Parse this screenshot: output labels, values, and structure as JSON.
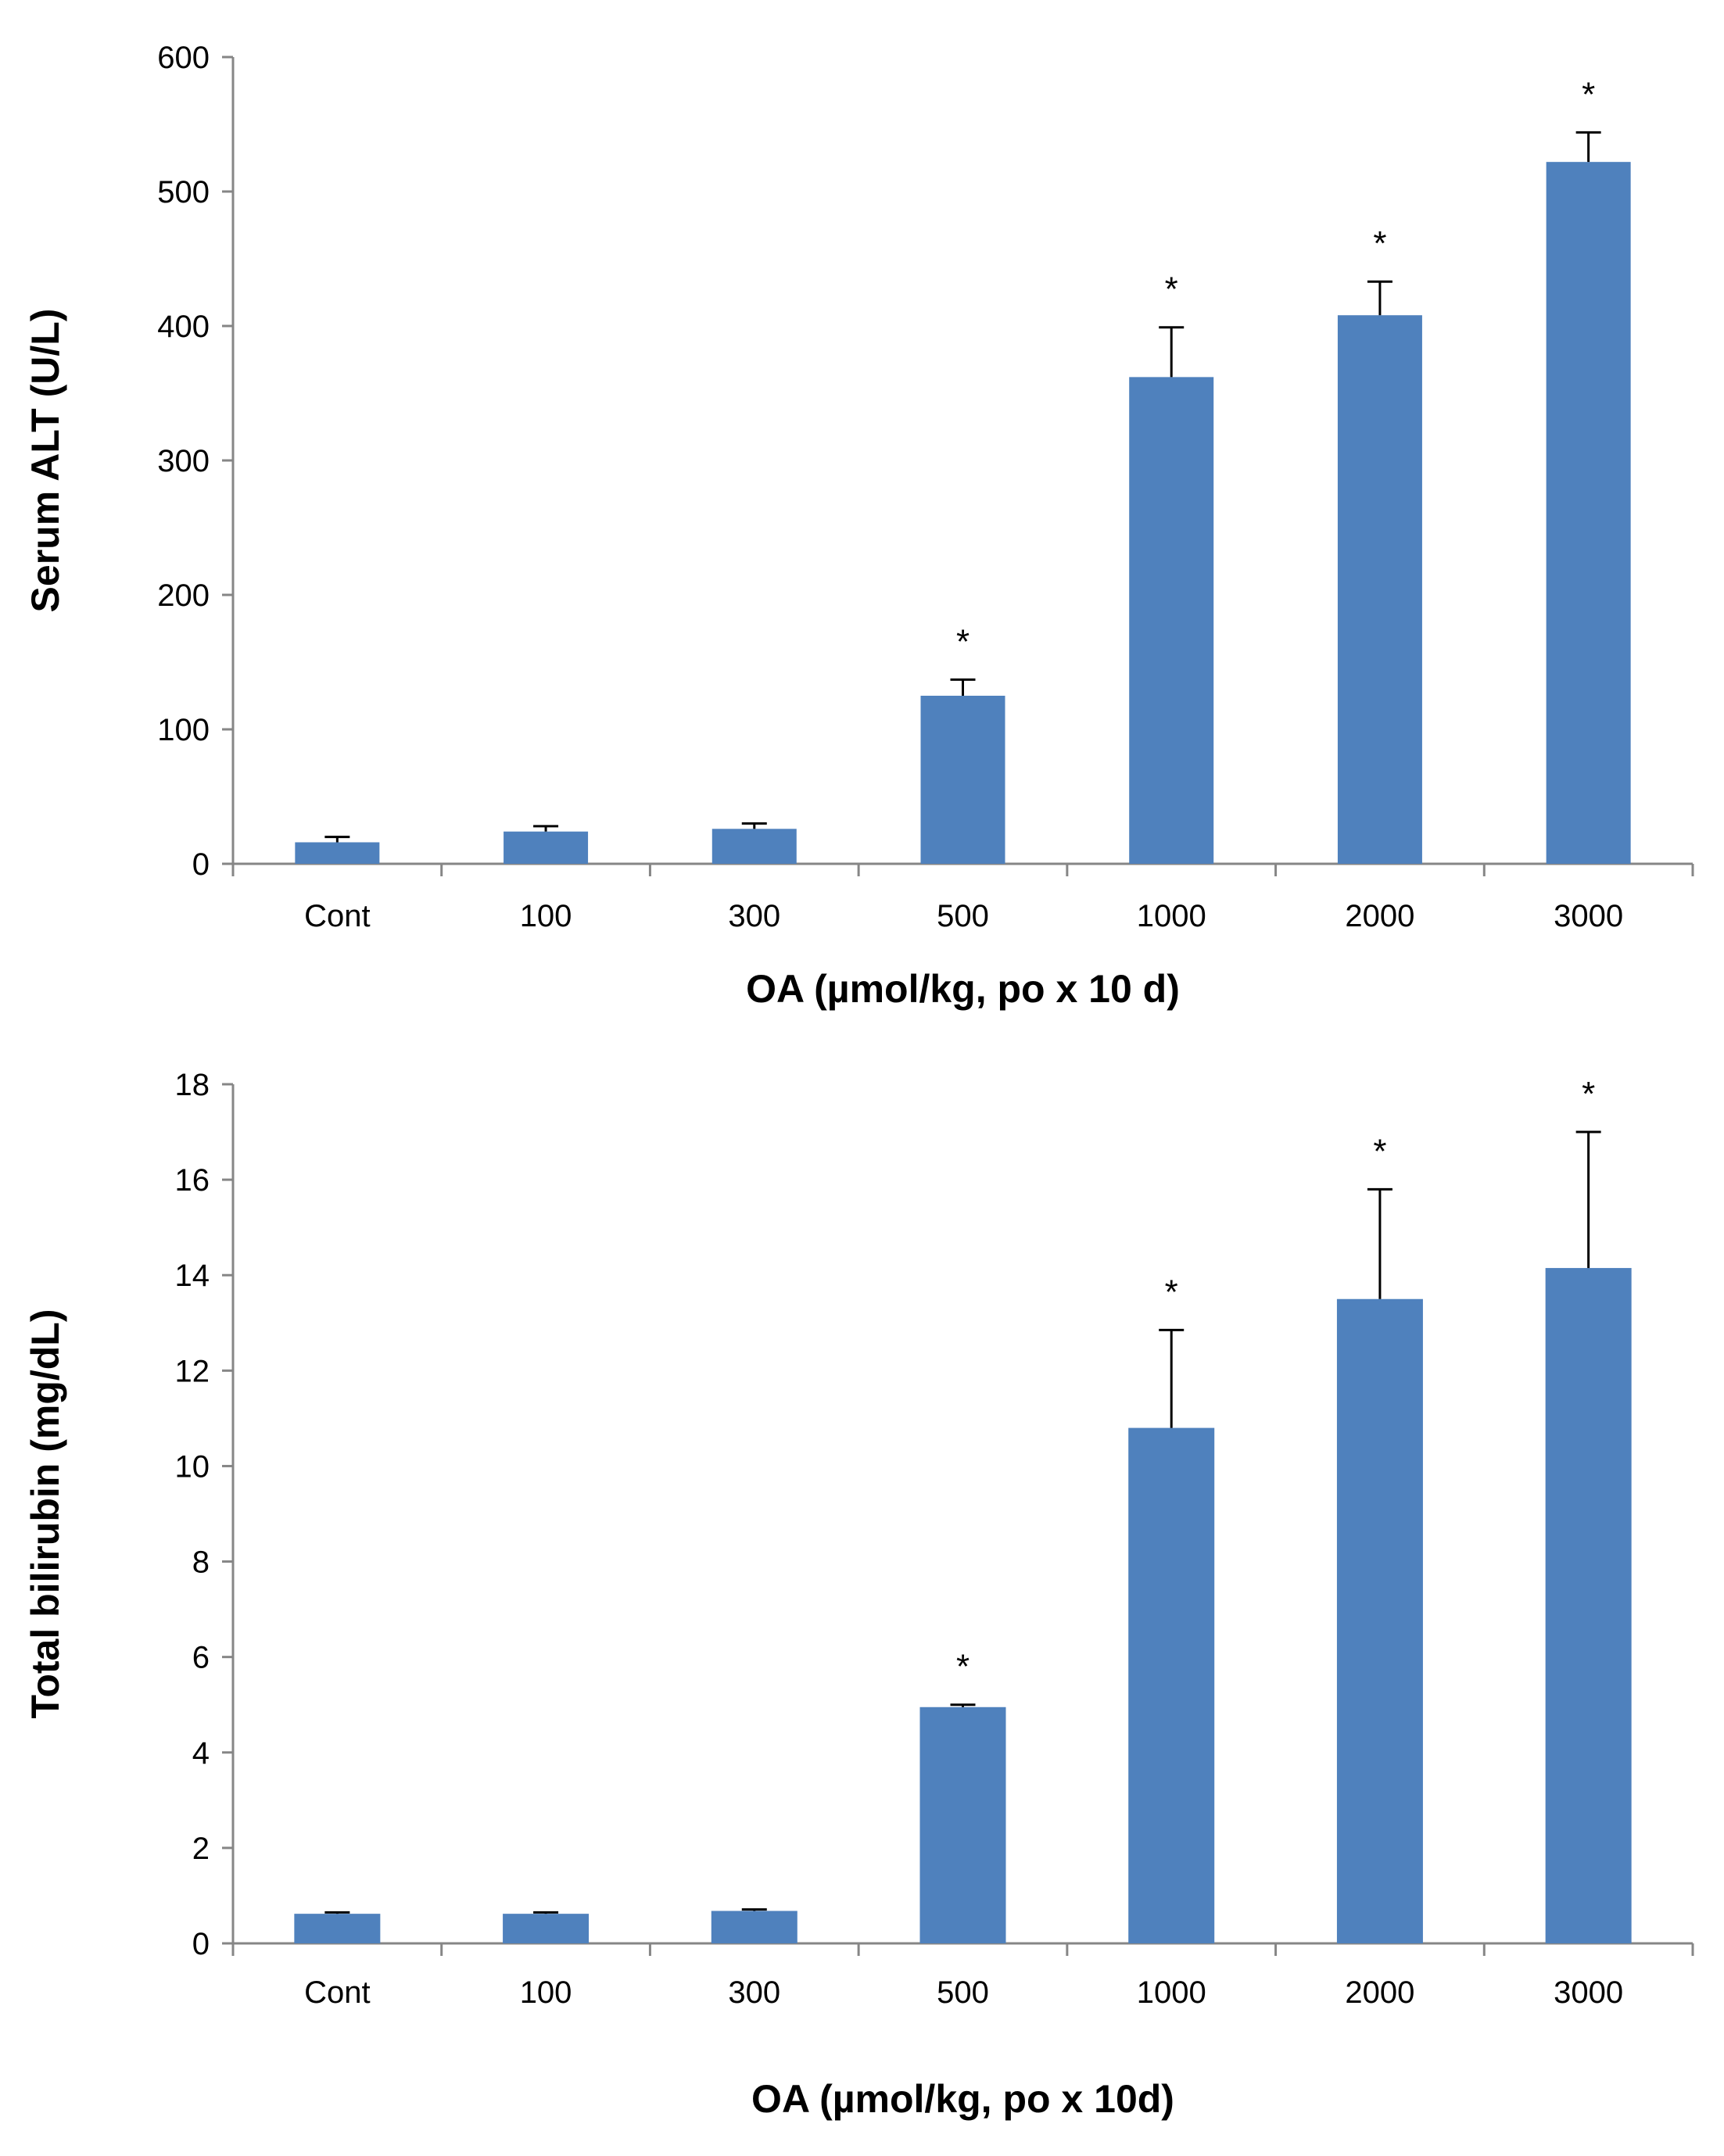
{
  "chart_data": [
    {
      "type": "bar",
      "title": "",
      "ylabel": "Serum ALT (U/L)",
      "xlabel": "OA (µmol/kg, po x 10 d)",
      "categories": [
        "Cont",
        "100",
        "300",
        "500",
        "1000",
        "2000",
        "3000"
      ],
      "values": [
        16,
        24,
        26,
        125,
        362,
        408,
        522
      ],
      "errors": [
        4,
        4,
        4,
        12,
        37,
        25,
        22
      ],
      "significant": [
        false,
        false,
        false,
        true,
        true,
        true,
        true
      ],
      "significance_marker": "*",
      "ylim": [
        0,
        600
      ],
      "yticks": [
        "0",
        "100",
        "200",
        "300",
        "400",
        "500",
        "600"
      ],
      "bar_color": "#4f81bd",
      "grid": false
    },
    {
      "type": "bar",
      "title": "",
      "ylabel": "Total bilirubin (mg/dL)",
      "xlabel": "OA  (µmol/kg, po x 10d)",
      "categories": [
        "Cont",
        "100",
        "300",
        "500",
        "1000",
        "2000",
        "3000"
      ],
      "values": [
        0.62,
        0.62,
        0.68,
        4.95,
        10.8,
        13.5,
        14.15
      ],
      "errors": [
        0.03,
        0.03,
        0.03,
        0.05,
        2.05,
        2.3,
        2.85
      ],
      "significant": [
        false,
        false,
        false,
        true,
        true,
        true,
        true
      ],
      "significance_marker": "*",
      "ylim": [
        0,
        18
      ],
      "yticks": [
        "0",
        "2",
        "4",
        "6",
        "8",
        "10",
        "12",
        "14",
        "16",
        "18"
      ],
      "bar_color": "#4f81bd",
      "grid": false
    }
  ]
}
